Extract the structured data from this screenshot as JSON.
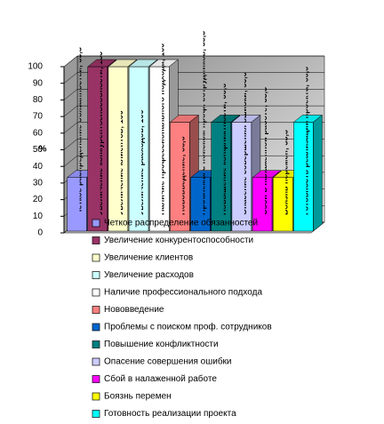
{
  "chart_data": {
    "type": "bar3d",
    "y_label": "%",
    "ylim": [
      0,
      100
    ],
    "yticks": [
      0,
      10,
      20,
      30,
      40,
      50,
      60,
      70,
      80,
      90,
      100
    ],
    "grid": true,
    "data_label_separator": "; ",
    "legend": "bottom",
    "series": [
      {
        "name": "Четкое распределение обязанностей",
        "color": "#9999ff",
        "values": [
          33.3
        ],
        "value_labels": [
          "33,3"
        ]
      },
      {
        "name": "Увеличение конкурентоспособности",
        "color": "#993366",
        "values": [
          100
        ],
        "value_labels": [
          "100"
        ]
      },
      {
        "name": "Увеличение клиентов",
        "color": "#ffffcc",
        "values": [
          100
        ],
        "value_labels": [
          "100"
        ]
      },
      {
        "name": "Увеличение расходов",
        "color": "#ccffff",
        "values": [
          100
        ],
        "value_labels": [
          "100"
        ]
      },
      {
        "name": "Наличие профессионального подхода",
        "color": "#ffffff",
        "values": [
          100
        ],
        "value_labels": [
          "100"
        ]
      },
      {
        "name": "Нововведение",
        "color": "#ff8080",
        "values": [
          66.6
        ],
        "value_labels": [
          "66,6"
        ]
      },
      {
        "name": "Проблемы с поиском проф. сотрудников",
        "color": "#0066cc",
        "values": [
          33.3
        ],
        "value_labels": [
          "33,3"
        ]
      },
      {
        "name": "Повышение конфликтности",
        "color": "#008080",
        "values": [
          66.6
        ],
        "value_labels": [
          "66,6"
        ]
      },
      {
        "name": "Опасение совершения ошибки",
        "color": "#ccccff",
        "values": [
          66.6
        ],
        "value_labels": [
          "66,6"
        ]
      },
      {
        "name": "Сбой в налаженной работе",
        "color": "#ff00ff",
        "values": [
          33.3
        ],
        "value_labels": [
          "33,3"
        ]
      },
      {
        "name": "Боязнь перемен",
        "color": "#ffff00",
        "values": [
          33.3
        ],
        "value_labels": [
          "33,3"
        ]
      },
      {
        "name": "Готовность реализации проекта",
        "color": "#00ffff",
        "values": [
          66.6
        ],
        "value_labels": [
          "66,6"
        ]
      }
    ]
  }
}
